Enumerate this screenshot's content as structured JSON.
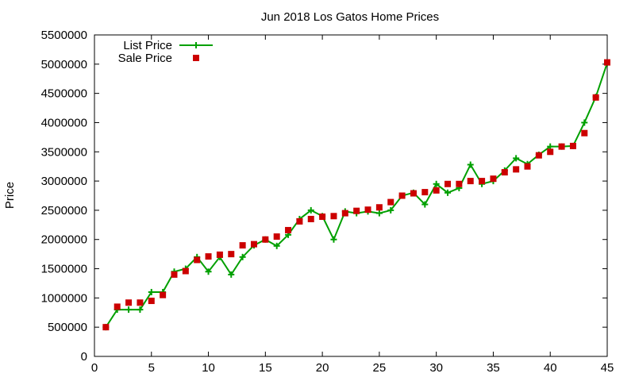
{
  "colors": {
    "list": "#00a000",
    "sale": "#cc0000",
    "axis": "#000000"
  },
  "chart_data": {
    "type": "line",
    "title": "Jun 2018 Los Gatos Home Prices",
    "xlabel": "",
    "ylabel": "Price",
    "xlim": [
      0,
      45
    ],
    "ylim": [
      0,
      5500000
    ],
    "xticks": [
      0,
      5,
      10,
      15,
      20,
      25,
      30,
      35,
      40,
      45
    ],
    "yticks": [
      0,
      500000,
      1000000,
      1500000,
      2000000,
      2500000,
      3000000,
      3500000,
      4000000,
      4500000,
      5000000,
      5500000
    ],
    "xtick_labels": [
      "0",
      "5",
      "10",
      "15",
      "20",
      "25",
      "30",
      "35",
      "40",
      "45"
    ],
    "ytick_labels": [
      "0",
      "500000",
      "1000000",
      "1500000",
      "2000000",
      "2500000",
      "3000000",
      "3500000",
      "4000000",
      "4500000",
      "5000000",
      "5500000"
    ],
    "legend_position": "top-left",
    "grid": false,
    "series": [
      {
        "name": "List Price",
        "style": "linespoints",
        "x": [
          1,
          2,
          3,
          4,
          5,
          6,
          7,
          8,
          9,
          10,
          11,
          12,
          13,
          14,
          15,
          16,
          17,
          18,
          19,
          20,
          21,
          22,
          23,
          24,
          25,
          26,
          27,
          28,
          29,
          30,
          31,
          32,
          33,
          34,
          35,
          36,
          37,
          38,
          39,
          40,
          41,
          42,
          43,
          44,
          45
        ],
        "values": [
          500000,
          800000,
          800000,
          800000,
          1100000,
          1100000,
          1450000,
          1500000,
          1700000,
          1450000,
          1700000,
          1400000,
          1700000,
          1900000,
          2000000,
          1890000,
          2080000,
          2350000,
          2500000,
          2400000,
          2000000,
          2480000,
          2450000,
          2480000,
          2450000,
          2500000,
          2750000,
          2800000,
          2600000,
          2950000,
          2800000,
          2880000,
          3280000,
          2950000,
          3000000,
          3180000,
          3390000,
          3290000,
          3450000,
          3590000,
          3590000,
          3600000,
          4000000,
          4440000,
          5020000
        ]
      },
      {
        "name": "Sale Price",
        "style": "points",
        "x": [
          1,
          2,
          3,
          4,
          5,
          6,
          7,
          8,
          9,
          10,
          11,
          12,
          13,
          14,
          15,
          16,
          17,
          18,
          19,
          20,
          21,
          22,
          23,
          24,
          25,
          26,
          27,
          28,
          29,
          30,
          31,
          32,
          33,
          34,
          35,
          36,
          37,
          38,
          39,
          40,
          41,
          42,
          43,
          44,
          45
        ],
        "values": [
          500000,
          850000,
          920000,
          920000,
          950000,
          1050000,
          1400000,
          1460000,
          1650000,
          1710000,
          1740000,
          1750000,
          1900000,
          1920000,
          2000000,
          2050000,
          2160000,
          2310000,
          2350000,
          2390000,
          2400000,
          2450000,
          2490000,
          2510000,
          2550000,
          2640000,
          2750000,
          2790000,
          2810000,
          2840000,
          2950000,
          2950000,
          3000000,
          3000000,
          3040000,
          3150000,
          3200000,
          3250000,
          3440000,
          3500000,
          3590000,
          3600000,
          3820000,
          4430000,
          5030000
        ]
      }
    ]
  }
}
